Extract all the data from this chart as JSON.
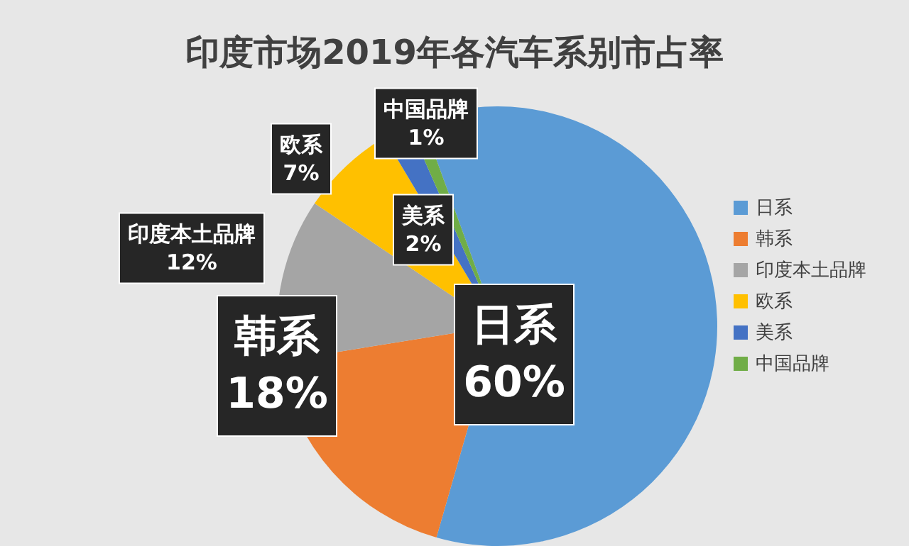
{
  "chart_data": {
    "type": "pie",
    "title": "印度市场2019年各汽车系别市占率",
    "categories": [
      "日系",
      "韩系",
      "印度本土品牌",
      "欧系",
      "美系",
      "中国品牌"
    ],
    "values": [
      60,
      18,
      12,
      7,
      2,
      1
    ],
    "colors": [
      "#5b9bd5",
      "#ed7d31",
      "#a5a5a5",
      "#ffc000",
      "#4472c4",
      "#70ad47"
    ],
    "value_labels": [
      "60%",
      "18%",
      "12%",
      "7%",
      "2%",
      "1%"
    ],
    "legend": "right"
  }
}
